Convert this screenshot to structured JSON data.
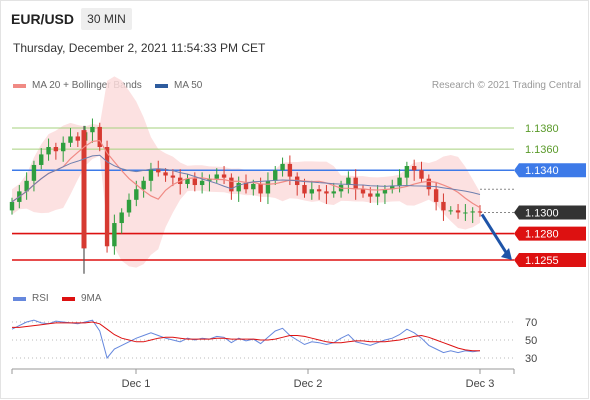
{
  "header": {
    "symbol": "EUR/USD",
    "timeframe": "30 MIN",
    "timestamp": "Thursday, December 2, 2021 11:54:33 PM CET"
  },
  "legend": [
    {
      "label": "MA 20 + Bollinger Bands",
      "color": "#f08a84"
    },
    {
      "label": "MA 50",
      "color": "#2e5c9e"
    }
  ],
  "credit": "Research © 2021 Trading Central",
  "colors": {
    "bull": "#2f9e3e",
    "bear": "#d63a31",
    "band": "#fcdcdc",
    "ma20": "#f08a84",
    "ma50": "#6e7fae",
    "support": "#dd1111",
    "resistance": "#a6d17e",
    "pivot": "#3d7ae8",
    "price": "#333333",
    "arrow": "#1e54a8",
    "rsi": "#6688dd",
    "rsi_ma": "#dd1111"
  },
  "chart_data": {
    "type": "line",
    "instrument": "EUR/USD",
    "interval": "30 MIN",
    "x_ticks": [
      "Dec 1",
      "Dec 2",
      "Dec 3"
    ],
    "y_ticks_price": [
      1.138,
      1.136,
      1.134,
      1.13,
      1.128,
      1.1255
    ],
    "last_price": 1.13,
    "levels": [
      {
        "label": "1.1380",
        "value": 1.138,
        "kind": "resistance"
      },
      {
        "label": "1.1360",
        "value": 1.136,
        "kind": "resistance"
      },
      {
        "label": "1.1340",
        "value": 1.134,
        "kind": "pivot"
      },
      {
        "label": "1.1300",
        "value": 1.13,
        "kind": "last"
      },
      {
        "label": "1.1280",
        "value": 1.128,
        "kind": "support"
      },
      {
        "label": "1.1255",
        "value": 1.1255,
        "kind": "support"
      }
    ],
    "forecast_arrow": {
      "from": 1.13,
      "to": 1.1255
    },
    "close_path": [
      1.131,
      1.132,
      1.133,
      1.1345,
      1.1355,
      1.1362,
      1.1358,
      1.1366,
      1.1372,
      1.1368,
      1.1376,
      1.1381,
      1.1362,
      1.1268,
      1.129,
      1.13,
      1.1312,
      1.1322,
      1.133,
      1.1341,
      1.1338,
      1.1335,
      1.1333,
      1.1327,
      1.1332,
      1.1326,
      1.133,
      1.1332,
      1.1336,
      1.1333,
      1.132,
      1.1328,
      1.1322,
      1.1327,
      1.1318,
      1.133,
      1.134,
      1.1346,
      1.1334,
      1.1326,
      1.1318,
      1.1322,
      1.132,
      1.1318,
      1.132,
      1.1326,
      1.1333,
      1.1322,
      1.1318,
      1.1315,
      1.1318,
      1.1322,
      1.1325,
      1.1333,
      1.1344,
      1.134,
      1.1332,
      1.1322,
      1.131,
      1.1302,
      1.1302,
      1.13,
      1.13,
      1.1301,
      1.13
    ],
    "candle_count": 65,
    "price_range": [
      1.1236,
      1.1398
    ],
    "rsi": {
      "legend": [
        {
          "label": "RSI",
          "color": "#6688dd"
        },
        {
          "label": "9MA",
          "color": "#dd1111"
        }
      ],
      "levels": [
        70,
        50,
        30
      ],
      "range": [
        20,
        80
      ],
      "values": [
        62,
        66,
        70,
        72,
        69,
        68,
        71,
        70,
        69,
        68,
        70,
        72,
        60,
        30,
        40,
        44,
        48,
        52,
        55,
        58,
        55,
        52,
        50,
        48,
        52,
        50,
        52,
        51,
        54,
        53,
        47,
        52,
        49,
        51,
        46,
        53,
        60,
        63,
        55,
        50,
        45,
        48,
        47,
        45,
        47,
        52,
        56,
        48,
        46,
        44,
        47,
        50,
        52,
        56,
        62,
        58,
        52,
        44,
        40,
        36,
        38,
        36,
        38,
        37,
        38
      ],
      "ma_values": [
        64,
        64,
        65,
        66,
        67,
        68,
        69,
        69,
        69,
        69,
        69,
        70,
        68,
        62,
        56,
        52,
        50,
        48,
        48,
        50,
        52,
        53,
        53,
        52,
        51,
        51,
        51,
        51,
        52,
        52,
        51,
        51,
        51,
        51,
        50,
        50,
        51,
        53,
        55,
        55,
        54,
        52,
        50,
        48,
        47,
        47,
        48,
        49,
        49,
        48,
        48,
        48,
        49,
        50,
        52,
        54,
        55,
        53,
        50,
        47,
        44,
        41,
        39,
        38,
        38
      ]
    }
  }
}
